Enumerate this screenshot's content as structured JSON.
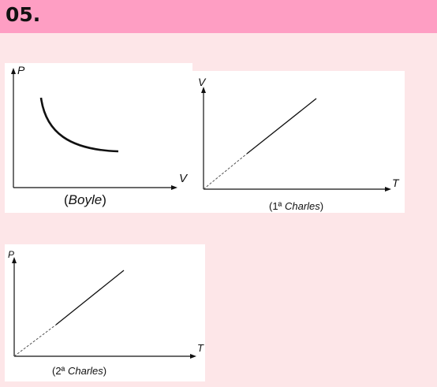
{
  "header": {
    "title": "05."
  },
  "diagrams": {
    "boyle": {
      "y_label": "P",
      "x_label": "V",
      "caption_open": "(",
      "caption_name": "Boyle",
      "caption_close": ")"
    },
    "charles1": {
      "y_label": "V",
      "x_label": "T",
      "caption_open": "(1ª ",
      "caption_name": "Charles",
      "caption_close": ")"
    },
    "charles2": {
      "y_label": "P",
      "x_label": "T",
      "caption_open": "(2ª ",
      "caption_name": "Charles",
      "caption_close": ")"
    }
  },
  "colors": {
    "header": "#fe9ec3",
    "background": "#fde6e8",
    "panel": "#ffffff",
    "ink": "#111111"
  }
}
